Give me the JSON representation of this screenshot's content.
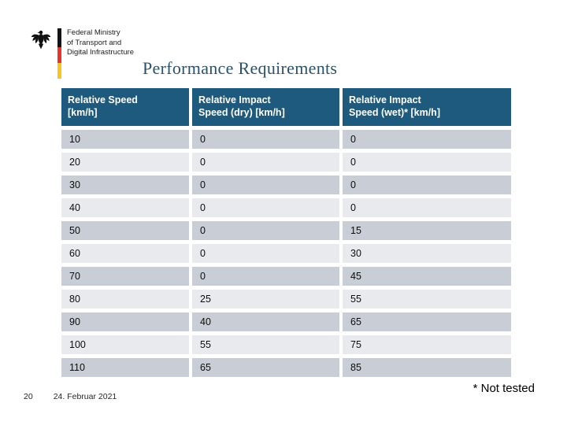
{
  "slide": {
    "title": "Performance Requirements",
    "footnote": "* Not tested"
  },
  "logo": {
    "ministry": {
      "line1": "Federal Ministry",
      "line2": "of Transport and",
      "line3": "Digital Infrastructure"
    }
  },
  "table": {
    "headers": [
      {
        "line1": "Relative Speed",
        "line2": "[km/h]"
      },
      {
        "line1": "Relative Impact",
        "line2": "Speed (dry) [km/h]"
      },
      {
        "line1": "Relative Impact",
        "line2": "Speed (wet)* [km/h]"
      }
    ],
    "rows": [
      [
        "10",
        "0",
        "0"
      ],
      [
        "20",
        "0",
        "0"
      ],
      [
        "30",
        "0",
        "0"
      ],
      [
        "40",
        "0",
        "0"
      ],
      [
        "50",
        "0",
        "15"
      ],
      [
        "60",
        "0",
        "30"
      ],
      [
        "70",
        "0",
        "45"
      ],
      [
        "80",
        "25",
        "55"
      ],
      [
        "90",
        "40",
        "65"
      ],
      [
        "100",
        "55",
        "75"
      ],
      [
        "110",
        "65",
        "85"
      ]
    ]
  },
  "footer": {
    "page_number": "20",
    "date": "24. Februar 2021"
  },
  "colors": {
    "header-bg": "#1D5A7E",
    "row-dark": "#C9CDD5",
    "row-light": "#E8EAEE",
    "title-color": "#2A5168",
    "flag-black": "#141414",
    "flag-red": "#E8342C",
    "flag-gold": "#F7C520"
  }
}
